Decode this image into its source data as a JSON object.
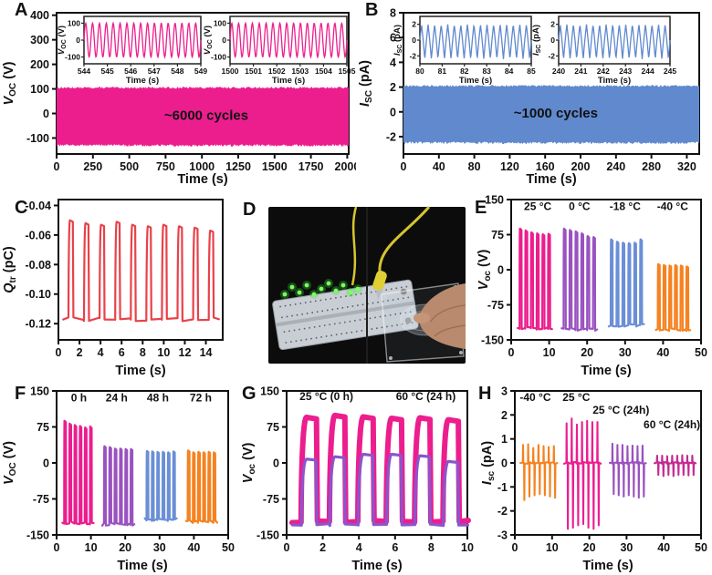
{
  "figure": {
    "panels": [
      "A",
      "B",
      "C",
      "D",
      "E",
      "F",
      "G",
      "H"
    ]
  },
  "colors": {
    "magenta": "#EC1E8E",
    "blue": "#6089CE",
    "red": "#E8424A",
    "purple": "#9A52C0",
    "orange": "#F58220",
    "violet": "#8B55CC",
    "mulberry": "#C42B92",
    "annotation_yellow": "#F0EA62",
    "axis": "#111111"
  },
  "photo": {
    "panel": "D",
    "elements": [
      "breadboard",
      "green-led-array",
      "jumper-wire-left",
      "jumper-wire-right",
      "alligator-clip",
      "acrylic-plate",
      "triboelectric-film",
      "hand"
    ]
  },
  "chart_data": [
    {
      "panel": "A",
      "type": "band",
      "xlabel": "Time (s)",
      "ylabel": {
        "sym": "V",
        "sub": "OC",
        "unit": "(V)"
      },
      "xlim": [
        0,
        2010
      ],
      "ylim": [
        -165,
        410
      ],
      "xticks": [
        "0",
        "250",
        "500",
        "750",
        "1000",
        "1250",
        "1500",
        "1750",
        "2000"
      ],
      "yticks": [
        "400",
        "300",
        "200",
        "100",
        "0",
        "-100"
      ],
      "color": "#EC1E8E",
      "band": {
        "top": 105,
        "bottom": -130,
        "noiseTop": 8,
        "noiseBot": 10
      },
      "annotation": {
        "text": "~6000 cycles",
        "x": 1030,
        "y": -25,
        "color": "#F0EA62"
      },
      "insets": [
        {
          "xlim": [
            544,
            549
          ],
          "xticks": [
            "544",
            "545",
            "546",
            "547",
            "548",
            "549"
          ],
          "ylim": [
            -140,
            140
          ],
          "yticks": [
            "100",
            "0",
            "-100"
          ],
          "xlabel": "Time (s)",
          "ylabel": {
            "sym": "V",
            "sub": "OC",
            "unit": "(V)"
          },
          "wave": "sine",
          "amp": 100,
          "cycles": 17
        },
        {
          "xlim": [
            1500,
            1505
          ],
          "xticks": [
            "1500",
            "1501",
            "1502",
            "1503",
            "1504",
            "1505"
          ],
          "ylim": [
            -140,
            140
          ],
          "yticks": [
            "100",
            "0",
            "-100"
          ],
          "xlabel": "Time (s)",
          "ylabel": {
            "sym": "V",
            "sub": "OC",
            "unit": "(V)"
          },
          "wave": "sine",
          "amp": 100,
          "cycles": 17
        }
      ]
    },
    {
      "panel": "B",
      "type": "band",
      "xlabel": "Time (s)",
      "ylabel": {
        "sym": "I",
        "sub": "SC",
        "unit": "(pA)"
      },
      "xlim": [
        0,
        334
      ],
      "ylim": [
        -3.4,
        8
      ],
      "xticks": [
        "0",
        "40",
        "80",
        "120",
        "160",
        "200",
        "240",
        "280",
        "320"
      ],
      "yticks": [
        "8",
        "6",
        "4",
        "2",
        "0",
        "-2"
      ],
      "color": "#6089CE",
      "band": {
        "top": 2.1,
        "bottom": -2.5,
        "noiseTop": 0.16,
        "noiseBot": 0.2
      },
      "annotation": {
        "text": "~1000 cycles",
        "x": 172,
        "y": -0.45,
        "color": "#F0EA62"
      },
      "insets": [
        {
          "xlim": [
            80,
            85
          ],
          "xticks": [
            "80",
            "81",
            "82",
            "83",
            "84",
            "85"
          ],
          "ylim": [
            -3,
            3
          ],
          "yticks": [
            "2",
            "0",
            "-2"
          ],
          "xlabel": "Time (s)",
          "ylabel": {
            "sym": "I",
            "sub": "SC",
            "unit": "(pA)"
          },
          "wave": "tri",
          "amp": 2.0,
          "ampNeg": 2.4,
          "cycles": 17
        },
        {
          "xlim": [
            240,
            245
          ],
          "xticks": [
            "240",
            "241",
            "242",
            "243",
            "244",
            "245"
          ],
          "ylim": [
            -3,
            3
          ],
          "yticks": [
            "2",
            "0",
            "-2"
          ],
          "xlabel": "Time (s)",
          "ylabel": {
            "sym": "I",
            "sub": "SC",
            "unit": "(pA)"
          },
          "wave": "tri",
          "amp": 2.0,
          "ampNeg": 2.4,
          "cycles": 17
        }
      ]
    },
    {
      "panel": "C",
      "type": "pulses",
      "xlabel": "Time (s)",
      "ylabel": {
        "sym": "Q",
        "sub": "tr",
        "unit": "(pC)"
      },
      "xlim": [
        0,
        15.6
      ],
      "ylim": [
        -0.131,
        -0.036
      ],
      "xticks": [
        "0",
        "2",
        "4",
        "6",
        "8",
        "10",
        "12",
        "14"
      ],
      "yticks": [
        "-0.04",
        "-0.06",
        "-0.08",
        "-0.10",
        "-0.12"
      ],
      "jit": 0.0013,
      "groups": [
        {
          "label": "",
          "color": "#E8424A",
          "t0": 0.95,
          "period": 1.48,
          "topw": 0.42,
          "rise": 0.14,
          "base": -0.117,
          "lw": 2.2,
          "peaks": [
            -0.05,
            -0.052,
            -0.053,
            -0.051,
            -0.053,
            -0.054,
            -0.053,
            -0.054,
            -0.055,
            -0.057
          ]
        }
      ]
    },
    {
      "panel": "D",
      "type": "photo",
      "elements": [
        "breadboard",
        "green-led-array",
        "jumper-wire-left",
        "jumper-wire-right",
        "alligator-clip",
        "acrylic-plate",
        "triboelectric-film",
        "hand"
      ]
    },
    {
      "panel": "E",
      "type": "pulses",
      "xlabel": "Time (s)",
      "ylabel": {
        "sym": "V",
        "sub": "oc",
        "unit": "(V)"
      },
      "xlim": [
        0,
        50
      ],
      "ylim": [
        -150,
        150
      ],
      "xticks": [
        "0",
        "10",
        "20",
        "30",
        "40",
        "50"
      ],
      "yticks": [
        "150",
        "75",
        "0",
        "-75",
        "-150"
      ],
      "jit": 3,
      "groups": [
        {
          "label": "25 °C",
          "lx": 7,
          "ly": 128,
          "color": "#EC1E8E",
          "t0": 2.2,
          "period": 1.5,
          "topw": 0.52,
          "rise": 0.1,
          "base": -125,
          "lw": 2.2,
          "peaks": [
            88,
            84,
            80,
            78,
            76,
            77
          ]
        },
        {
          "label": "0 °C",
          "lx": 18,
          "ly": 128,
          "color": "#9A52C0",
          "t0": 13.8,
          "period": 1.55,
          "topw": 0.52,
          "rise": 0.1,
          "base": -128,
          "lw": 2.2,
          "peaks": [
            88,
            85,
            82,
            78,
            72,
            70
          ]
        },
        {
          "label": "-18 °C",
          "lx": 30,
          "ly": 128,
          "color": "#6B8FD6",
          "t0": 26.2,
          "period": 1.55,
          "topw": 0.48,
          "rise": 0.1,
          "base": -119,
          "lw": 2.2,
          "peaks": [
            65,
            60,
            58,
            57,
            58,
            65
          ]
        },
        {
          "label": "-40 °C",
          "lx": 42.5,
          "ly": 128,
          "color": "#F58220",
          "t0": 38.6,
          "period": 1.5,
          "topw": 0.52,
          "rise": 0.1,
          "base": -128,
          "lw": 2.2,
          "peaks": [
            12,
            10,
            9,
            10,
            9,
            7
          ]
        }
      ]
    },
    {
      "panel": "F",
      "type": "pulses",
      "xlabel": "Time (s)",
      "ylabel": {
        "sym": "V",
        "sub": "OC",
        "unit": "(V)"
      },
      "xlim": [
        0,
        50
      ],
      "ylim": [
        -150,
        150
      ],
      "xticks": [
        "0",
        "10",
        "20",
        "30",
        "40",
        "50"
      ],
      "yticks": [
        "150",
        "75",
        "0",
        "-75",
        "-150"
      ],
      "jit": 3,
      "groups": [
        {
          "label": "0 h",
          "lx": 6.5,
          "ly": 128,
          "color": "#EC1E8E",
          "t0": 2.2,
          "period": 1.5,
          "topw": 0.52,
          "rise": 0.1,
          "base": -125,
          "lw": 2.2,
          "peaks": [
            88,
            82,
            79,
            77,
            74,
            76
          ]
        },
        {
          "label": "24 h",
          "lx": 17.5,
          "ly": 128,
          "color": "#9A52C0",
          "t0": 13.8,
          "period": 1.55,
          "topw": 0.52,
          "rise": 0.1,
          "base": -128,
          "lw": 2.2,
          "peaks": [
            35,
            33,
            30,
            30,
            29,
            29
          ]
        },
        {
          "label": "48 h",
          "lx": 29.5,
          "ly": 128,
          "color": "#6B8FD6",
          "t0": 26.2,
          "period": 1.55,
          "topw": 0.5,
          "rise": 0.1,
          "base": -118,
          "lw": 2.2,
          "peaks": [
            25,
            24,
            23,
            23,
            22,
            24
          ]
        },
        {
          "label": "72 h",
          "lx": 42,
          "ly": 128,
          "color": "#F58220",
          "t0": 38.2,
          "period": 1.5,
          "topw": 0.52,
          "rise": 0.1,
          "base": -122,
          "lw": 2.2,
          "peaks": [
            26,
            22,
            23,
            22,
            23,
            22
          ]
        }
      ]
    },
    {
      "panel": "G",
      "type": "pulses",
      "xlabel": "Time (s)",
      "ylabel": {
        "sym": "V",
        "sub": "oc",
        "unit": "(V)"
      },
      "xlim": [
        0,
        10
      ],
      "ylim": [
        -150,
        150
      ],
      "xticks": [
        "0",
        "2",
        "4",
        "6",
        "8",
        "10"
      ],
      "yticks": [
        "150",
        "75",
        "0",
        "-75",
        "-150"
      ],
      "jit": 2.5,
      "groups": [
        {
          "label": "25 °C (0 h)",
          "labelColor": "#EC1E8E",
          "lx": 2.2,
          "ly": 131,
          "color": "#EC1E8E",
          "t0": 0.8,
          "period": 1.57,
          "topw": 0.85,
          "rise": 0.3,
          "base": -122,
          "lw": 6,
          "peaks": [
            95,
            99,
            96,
            93,
            94,
            90
          ]
        },
        {
          "label": "60 °C (24 h)",
          "labelColor": "#8B55CC",
          "lx": 7.7,
          "ly": 131,
          "color": "#8B55CC",
          "t0": 0.82,
          "period": 1.57,
          "topw": 0.8,
          "rise": 0.28,
          "base": -128,
          "lw": 3.2,
          "peaks": [
            8,
            13,
            18,
            18,
            15,
            3
          ]
        }
      ]
    },
    {
      "panel": "H",
      "type": "spikes",
      "xlabel": "Time (s)",
      "ylabel": {
        "sym": "I",
        "sub": "sc",
        "unit": "(pA)"
      },
      "xlim": [
        0,
        50
      ],
      "ylim": [
        -3,
        3
      ],
      "xticks": [
        "0",
        "10",
        "20",
        "30",
        "40",
        "50"
      ],
      "yticks": [
        "3",
        "2",
        "1",
        "0",
        "-1",
        "-2",
        "-3"
      ],
      "groups": [
        {
          "label": "-40 °C",
          "lx": 5.5,
          "ly": 2.58,
          "color": "#F58220",
          "t0": 2.2,
          "period": 1.38,
          "up": [
            0.75,
            0.78,
            0.62,
            0.75,
            0.7,
            0.66,
            0.7
          ],
          "down": [
            -1.55,
            -1.4,
            -1.35,
            -1.3,
            -1.35,
            -1.4,
            -1.45
          ]
        },
        {
          "label": "25 °C",
          "lx": 16.5,
          "ly": 2.58,
          "color": "#EC1E8E",
          "t0": 13.9,
          "period": 1.38,
          "up": [
            1.65,
            1.85,
            1.6,
            1.7,
            1.75,
            1.7,
            1.7
          ],
          "down": [
            -2.75,
            -2.7,
            -2.6,
            -2.55,
            -2.7,
            -2.75,
            -2.6
          ]
        },
        {
          "label": "25 °C (24h)",
          "lx": 28.5,
          "ly": 2.05,
          "color": "#9A52C0",
          "t0": 26.2,
          "period": 1.35,
          "up": [
            0.8,
            0.75,
            0.75,
            0.7,
            0.72,
            0.7,
            0.72
          ],
          "down": [
            -1.3,
            -1.35,
            -1.4,
            -1.35,
            -1.4,
            -1.45,
            -1.4
          ]
        },
        {
          "label": "60 °C (24h)",
          "la": "end",
          "lx": 49.8,
          "ly": 1.45,
          "color": "#C42B92",
          "t0": 38.2,
          "period": 1.35,
          "up": [
            0.3,
            0.3,
            0.28,
            0.3,
            0.3,
            0.32,
            0.3,
            0.3
          ],
          "down": [
            -0.5,
            -0.55,
            -0.5,
            -0.55,
            -0.5,
            -0.5,
            -0.52,
            -0.5
          ]
        }
      ]
    }
  ]
}
